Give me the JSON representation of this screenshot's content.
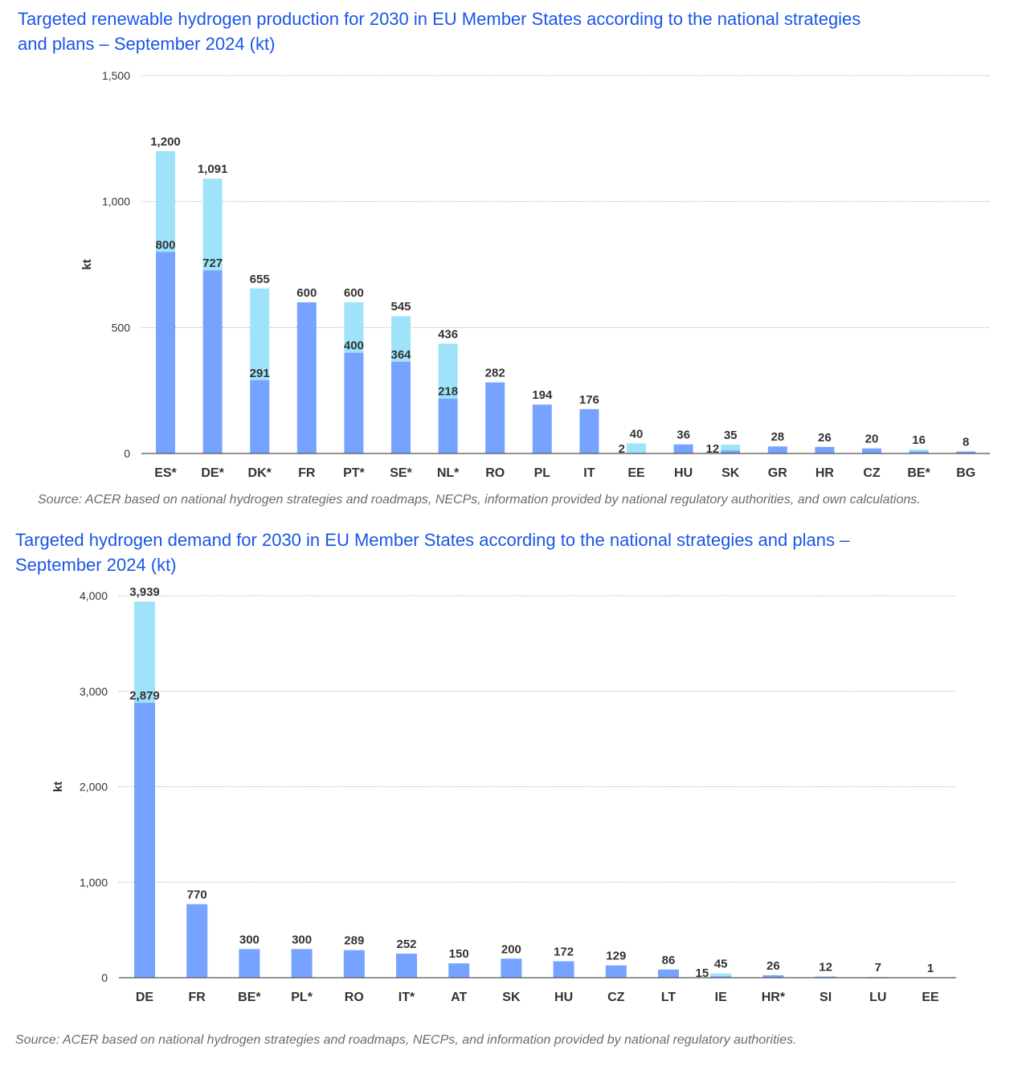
{
  "colors": {
    "title": "#1a56e8",
    "base": "#75a3ff",
    "range": "#9fe3fa",
    "text": "#333333",
    "grid": "#a8a8a8",
    "source": "#6b6b6b"
  },
  "chart_data": [
    {
      "type": "bar",
      "stacked": true,
      "title": "Targeted renewable hydrogen production for 2030 in EU Member States according to the national strategies\nand plans – September 2024 (kt)",
      "ylabel": "kt",
      "ylim": [
        0,
        1500
      ],
      "yticks": [
        0,
        500,
        1000,
        1500
      ],
      "ytick_labels": [
        "0",
        "500",
        "1,000",
        "1,500"
      ],
      "grid": true,
      "categories": [
        "ES*",
        "DE*",
        "DK*",
        "FR",
        "PT*",
        "SE*",
        "NL*",
        "RO",
        "PL",
        "IT",
        "EE",
        "HU",
        "SK",
        "GR",
        "HR",
        "CZ",
        "BE*",
        "BG"
      ],
      "low_values": [
        800,
        727,
        291,
        600,
        400,
        364,
        218,
        282,
        194,
        176,
        2,
        36,
        12,
        28,
        26,
        20,
        8,
        8
      ],
      "high_values": [
        1200,
        1091,
        655,
        600,
        600,
        545,
        436,
        282,
        194,
        176,
        40,
        36,
        35,
        28,
        26,
        20,
        16,
        8
      ],
      "low_labels": [
        "800",
        "727",
        "291",
        "",
        "400",
        "364",
        "218",
        "",
        "",
        "",
        "2",
        "",
        "12",
        "",
        "",
        "",
        "",
        ""
      ],
      "high_labels": [
        "1,200",
        "1,091",
        "655",
        "600",
        "600",
        "545",
        "436",
        "282",
        "194",
        "176",
        "40",
        "36",
        "35",
        "28",
        "26",
        "20",
        "16",
        "8"
      ],
      "source": "Source: ACER based on national hydrogen strategies and roadmaps, NECPs, information provided by national regulatory authorities, and own calculations."
    },
    {
      "type": "bar",
      "stacked": true,
      "title": "Targeted hydrogen demand for 2030 in EU Member States according to the national strategies and plans –\nSeptember 2024 (kt)",
      "ylabel": "kt",
      "ylim": [
        0,
        4000
      ],
      "yticks": [
        0,
        1000,
        2000,
        3000,
        4000
      ],
      "ytick_labels": [
        "0",
        "1,000",
        "2,000",
        "3,000",
        "4,000"
      ],
      "grid": true,
      "categories": [
        "DE",
        "FR",
        "BE*",
        "PL*",
        "RO",
        "IT*",
        "AT",
        "SK",
        "HU",
        "CZ",
        "LT",
        "IE",
        "HR*",
        "SI",
        "LU",
        "EE"
      ],
      "low_values": [
        2879,
        770,
        300,
        300,
        289,
        252,
        150,
        200,
        172,
        129,
        86,
        15,
        26,
        12,
        7,
        1
      ],
      "high_values": [
        3939,
        770,
        300,
        300,
        289,
        252,
        150,
        200,
        172,
        129,
        86,
        45,
        26,
        12,
        7,
        1
      ],
      "low_labels": [
        "2,879",
        "",
        "",
        "",
        "",
        "",
        "",
        "",
        "",
        "",
        "",
        "15",
        "",
        "",
        "",
        ""
      ],
      "high_labels": [
        "3,939",
        "770",
        "300",
        "300",
        "289",
        "252",
        "150",
        "200",
        "172",
        "129",
        "86",
        "45",
        "26",
        "12",
        "7",
        "1"
      ],
      "source": "Source: ACER based on national hydrogen strategies and roadmaps, NECPs, and information provided by national regulatory authorities."
    }
  ]
}
